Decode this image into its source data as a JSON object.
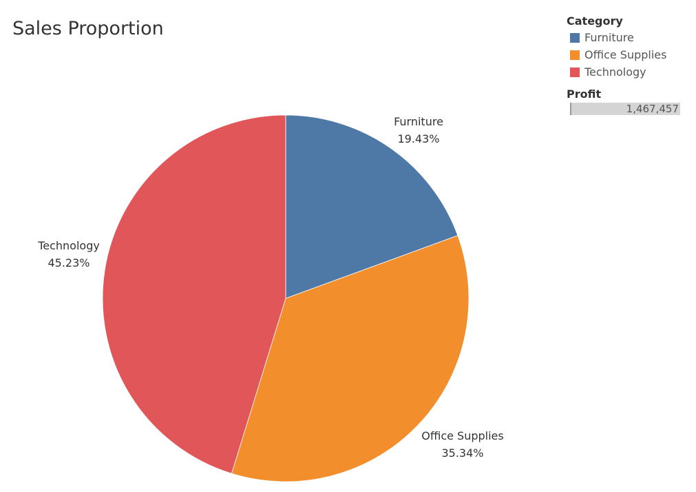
{
  "chart_data": {
    "type": "pie",
    "title": "Sales Proportion",
    "slices": [
      {
        "name": "Furniture",
        "value": 19.43,
        "label": "19.43%",
        "color": "#4e79a7"
      },
      {
        "name": "Office Supplies",
        "value": 35.34,
        "label": "35.34%",
        "color": "#f28e2b"
      },
      {
        "name": "Technology",
        "value": 45.23,
        "label": "45.23%",
        "color": "#e15759"
      }
    ],
    "start": "12 o'clock",
    "direction": "clockwise",
    "legend": {
      "title": "Category",
      "placement": "top-right"
    }
  },
  "profit_legend": {
    "title": "Profit",
    "value": "1,467,457",
    "color": "#d4d4d4"
  }
}
